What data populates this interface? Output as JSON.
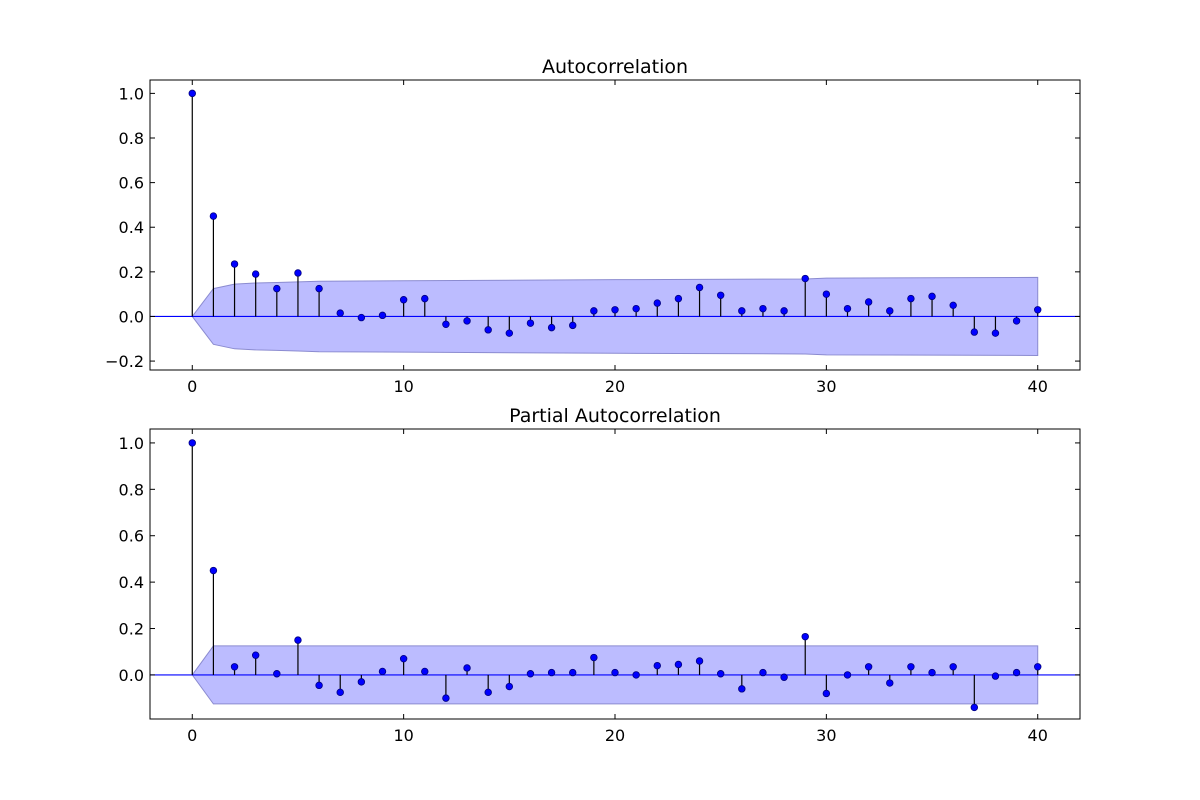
{
  "colors": {
    "marker": "#0000ff",
    "marker_edge": "#000080",
    "stem": "#000000",
    "baseline": "#0000ff",
    "band_fill": "#bcbcff",
    "band_edge": "#8b8bd0"
  },
  "chart_data": [
    {
      "type": "stem",
      "title": "Autocorrelation",
      "xlabel": "",
      "ylabel": "",
      "xlim": [
        -2,
        42
      ],
      "ylim": [
        -0.24,
        1.06
      ],
      "xticks": [
        0,
        10,
        20,
        30,
        40
      ],
      "xtick_labels": [
        "0",
        "10",
        "20",
        "30",
        "40"
      ],
      "yticks": [
        -0.2,
        0.0,
        0.2,
        0.4,
        0.6,
        0.8,
        1.0
      ],
      "ytick_labels": [
        "−0.2",
        "0.0",
        "0.2",
        "0.4",
        "0.6",
        "0.8",
        "1.0"
      ],
      "grid": false,
      "legend": "none",
      "lags": [
        0,
        1,
        2,
        3,
        4,
        5,
        6,
        7,
        8,
        9,
        10,
        11,
        12,
        13,
        14,
        15,
        16,
        17,
        18,
        19,
        20,
        21,
        22,
        23,
        24,
        25,
        26,
        27,
        28,
        29,
        30,
        31,
        32,
        33,
        34,
        35,
        36,
        37,
        38,
        39,
        40
      ],
      "values": [
        1.0,
        0.45,
        0.235,
        0.19,
        0.125,
        0.195,
        0.125,
        0.015,
        -0.005,
        0.005,
        0.075,
        0.08,
        -0.035,
        -0.02,
        -0.06,
        -0.075,
        -0.03,
        -0.05,
        -0.04,
        0.025,
        0.03,
        0.035,
        0.06,
        0.08,
        0.13,
        0.095,
        0.025,
        0.035,
        0.025,
        0.17,
        0.1,
        0.035,
        0.065,
        0.025,
        0.08,
        0.09,
        0.05,
        -0.07,
        -0.075,
        -0.02,
        0.03
      ],
      "confidence_band": {
        "lags": [
          0,
          1,
          2,
          3,
          4,
          5,
          6,
          10,
          20,
          29,
          30,
          40
        ],
        "upper": [
          0.0,
          0.125,
          0.145,
          0.15,
          0.152,
          0.155,
          0.158,
          0.16,
          0.165,
          0.168,
          0.172,
          0.175
        ]
      }
    },
    {
      "type": "stem",
      "title": "Partial Autocorrelation",
      "xlabel": "",
      "ylabel": "",
      "xlim": [
        -2,
        42
      ],
      "ylim": [
        -0.19,
        1.06
      ],
      "xticks": [
        0,
        10,
        20,
        30,
        40
      ],
      "xtick_labels": [
        "0",
        "10",
        "20",
        "30",
        "40"
      ],
      "yticks": [
        0.0,
        0.2,
        0.4,
        0.6,
        0.8,
        1.0
      ],
      "ytick_labels": [
        "0.0",
        "0.2",
        "0.4",
        "0.6",
        "0.8",
        "1.0"
      ],
      "grid": false,
      "legend": "none",
      "lags": [
        0,
        1,
        2,
        3,
        4,
        5,
        6,
        7,
        8,
        9,
        10,
        11,
        12,
        13,
        14,
        15,
        16,
        17,
        18,
        19,
        20,
        21,
        22,
        23,
        24,
        25,
        26,
        27,
        28,
        29,
        30,
        31,
        32,
        33,
        34,
        35,
        36,
        37,
        38,
        39,
        40
      ],
      "values": [
        1.0,
        0.45,
        0.035,
        0.085,
        0.005,
        0.15,
        -0.045,
        -0.075,
        -0.03,
        0.015,
        0.07,
        0.015,
        -0.1,
        0.03,
        -0.075,
        -0.05,
        0.005,
        0.01,
        0.01,
        0.075,
        0.01,
        0.0,
        0.04,
        0.045,
        0.06,
        0.005,
        -0.06,
        0.01,
        -0.01,
        0.165,
        -0.08,
        0.0,
        0.035,
        -0.035,
        0.035,
        0.01,
        0.035,
        -0.14,
        -0.005,
        0.01,
        0.035
      ],
      "confidence_band": {
        "lags": [
          0,
          1,
          40
        ],
        "upper": [
          0.0,
          0.125,
          0.125
        ]
      }
    }
  ]
}
